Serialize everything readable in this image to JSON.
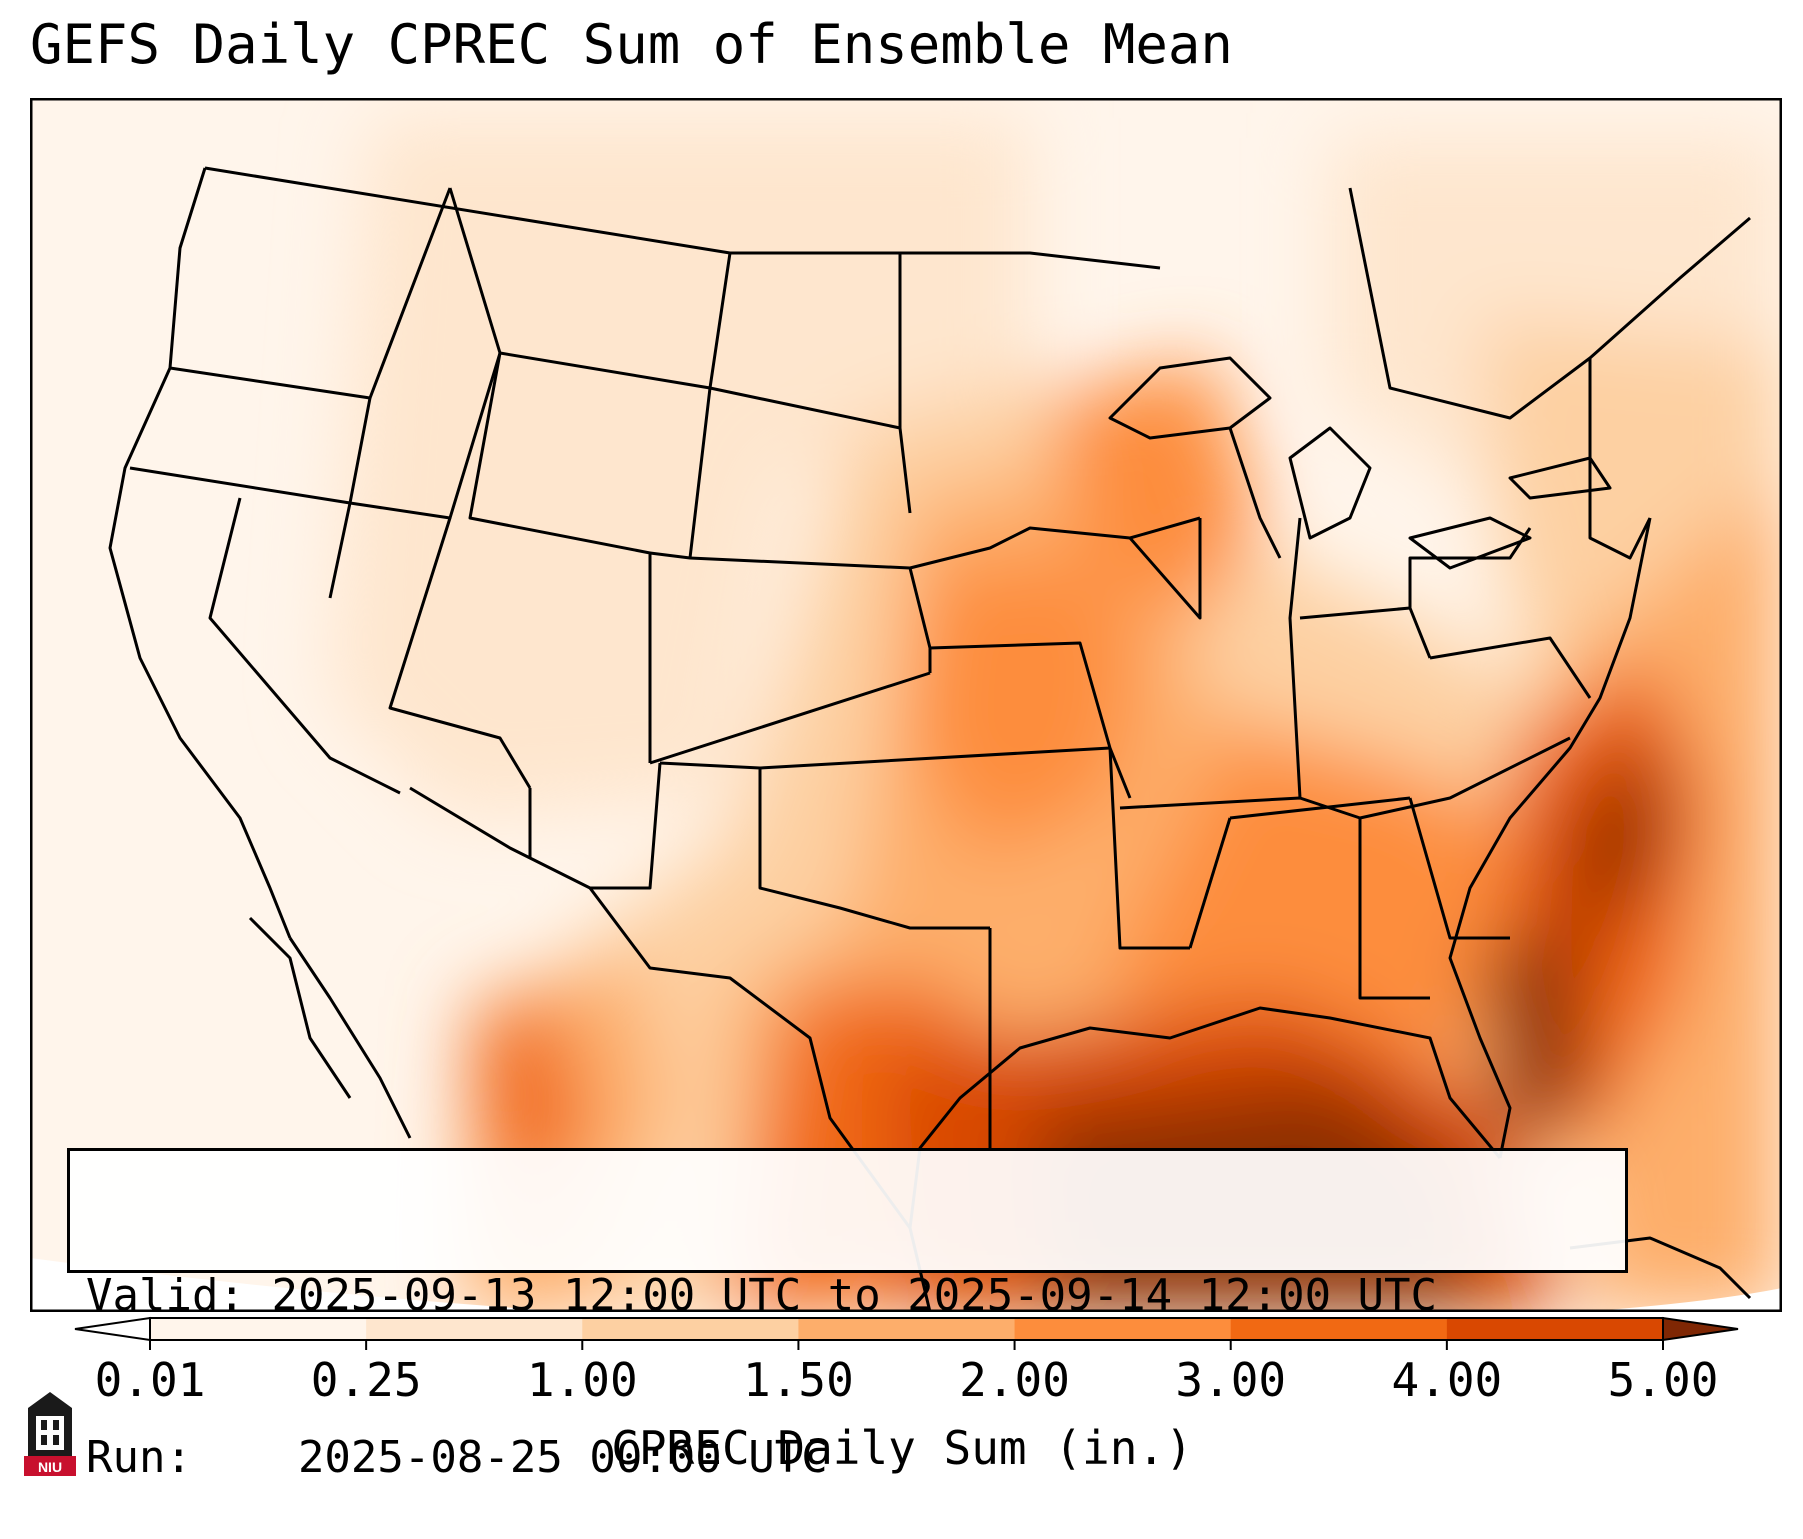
{
  "title": "GEFS Daily CPREC Sum of Ensemble Mean",
  "info": {
    "valid_label": "Valid:",
    "valid_value": "2025-09-13 12:00 UTC to 2025-09-14 12:00 UTC",
    "run_label": "Run:",
    "run_value": "2025-08-25 00:00 UTC"
  },
  "colorbar": {
    "label": "CPREC Daily Sum (in.)",
    "ticks": [
      "0.01",
      "0.25",
      "1.00",
      "1.50",
      "2.00",
      "3.00",
      "4.00",
      "5.00"
    ],
    "bin_colors": [
      "#fff5eb",
      "#fee6ce",
      "#fdd0a2",
      "#fdae6b",
      "#fd8d3c",
      "#f16913",
      "#d94801",
      "#8c2d04"
    ],
    "under_color": "#ffffff",
    "over_color": "#7f2704"
  },
  "logo": {
    "text": "NIU",
    "icon": "university-tower-icon",
    "color": "#c8102e"
  }
}
